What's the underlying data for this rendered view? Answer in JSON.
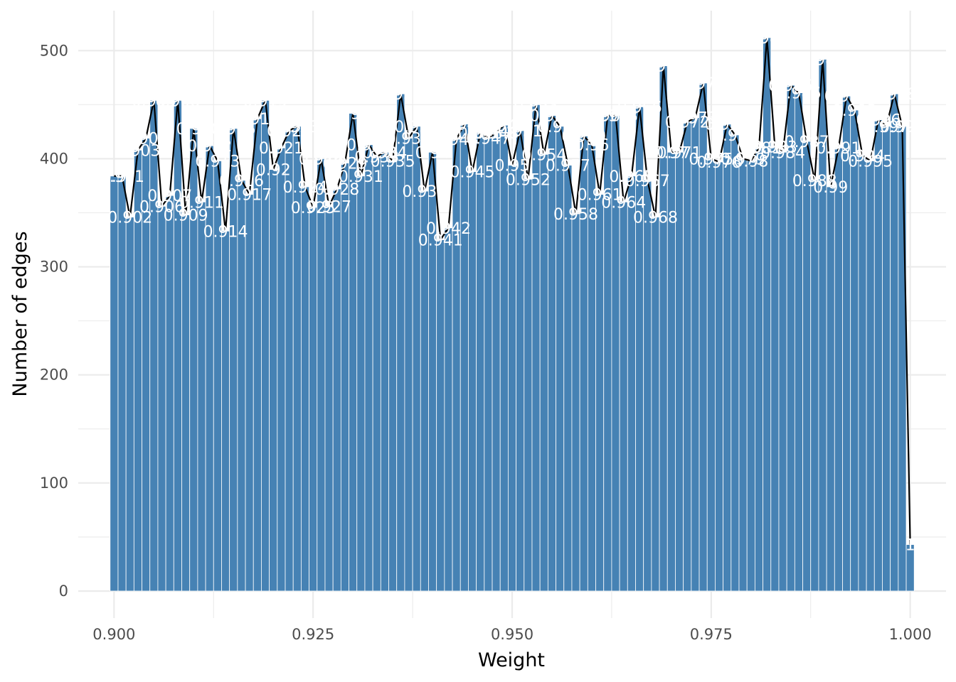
{
  "chart_data": {
    "type": "bar",
    "xlabel": "Weight",
    "ylabel": "Number of edges",
    "xlim": [
      0.8955,
      1.0045
    ],
    "ylim": [
      -25,
      537
    ],
    "x_ticks": [
      "0.900",
      "0.925",
      "0.950",
      "0.975",
      "1.000"
    ],
    "y_ticks": [
      "0",
      "100",
      "200",
      "300",
      "400",
      "500"
    ],
    "grid": true,
    "legend": "none",
    "colors": {
      "bar": "#4682b4",
      "bar_edge": "#ffffff",
      "line": "#000000",
      "grid": "#ebebeb",
      "label": "#ffffff"
    },
    "x": [
      0.9,
      0.901,
      0.902,
      0.903,
      0.904,
      0.905,
      0.906,
      0.907,
      0.908,
      0.909,
      0.91,
      0.911,
      0.912,
      0.913,
      0.914,
      0.915,
      0.916,
      0.917,
      0.918,
      0.919,
      0.92,
      0.921,
      0.922,
      0.923,
      0.924,
      0.925,
      0.926,
      0.927,
      0.928,
      0.929,
      0.93,
      0.931,
      0.932,
      0.933,
      0.934,
      0.935,
      0.936,
      0.937,
      0.938,
      0.939,
      0.94,
      0.941,
      0.942,
      0.943,
      0.944,
      0.945,
      0.946,
      0.947,
      0.948,
      0.949,
      0.95,
      0.951,
      0.952,
      0.953,
      0.954,
      0.955,
      0.956,
      0.957,
      0.958,
      0.959,
      0.96,
      0.961,
      0.962,
      0.963,
      0.964,
      0.965,
      0.966,
      0.967,
      0.968,
      0.969,
      0.97,
      0.971,
      0.972,
      0.973,
      0.974,
      0.975,
      0.976,
      0.977,
      0.978,
      0.979,
      0.98,
      0.981,
      0.982,
      0.983,
      0.984,
      0.985,
      0.986,
      0.987,
      0.988,
      0.989,
      0.99,
      0.991,
      0.992,
      0.993,
      0.994,
      0.995,
      0.996,
      0.997,
      0.998,
      0.999,
      1.0
    ],
    "values": [
      384,
      384,
      346,
      408,
      419,
      454,
      356,
      366,
      454,
      348,
      428,
      360,
      412,
      398,
      333,
      428,
      380,
      367,
      437,
      454,
      390,
      410,
      426,
      430,
      374,
      355,
      400,
      356,
      372,
      396,
      442,
      384,
      413,
      402,
      406,
      398,
      460,
      419,
      430,
      370,
      406,
      325,
      336,
      418,
      432,
      388,
      424,
      419,
      424,
      431,
      394,
      426,
      381,
      450,
      404,
      440,
      430,
      394,
      349,
      421,
      413,
      367,
      440,
      440,
      360,
      384,
      448,
      380,
      346,
      486,
      406,
      406,
      434,
      438,
      470,
      400,
      397,
      432,
      422,
      400,
      398,
      410,
      512,
      411,
      406,
      468,
      461,
      416,
      380,
      492,
      374,
      410,
      458,
      445,
      403,
      398,
      436,
      430,
      460,
      430,
      43
    ],
    "labels": [
      "0.9",
      "0.901",
      "0.902",
      "0.903",
      "0.904",
      "0.905",
      "0.906",
      "0.907",
      "0.908",
      "0.909",
      "0.91",
      "0.911",
      "0.912",
      "0.913",
      "0.914",
      "0.915",
      "0.916",
      "0.917",
      "0.918",
      "0.919",
      "0.92",
      "0.921",
      "0.922",
      "0.923",
      "0.924",
      "0.925",
      "0.926",
      "0.927",
      "0.928",
      "0.929",
      "0.93",
      "0.931",
      "0.932",
      "0.933",
      "0.934",
      "0.935",
      "0.936",
      "0.937",
      "0.938",
      "0.939",
      "0.94",
      "0.941",
      "0.942",
      "0.943",
      "0.944",
      "0.945",
      "0.946",
      "0.947",
      "0.948",
      "0.949",
      "0.95",
      "0.951",
      "0.952",
      "0.953",
      "0.954",
      "0.955",
      "0.956",
      "0.957",
      "0.958",
      "0.959",
      "0.96",
      "0.961",
      "0.962",
      "0.963",
      "0.964",
      "0.965",
      "0.966",
      "0.967",
      "0.968",
      "0.969",
      "0.97",
      "0.971",
      "0.972",
      "0.973",
      "0.974",
      "0.975",
      "0.976",
      "0.977",
      "0.978",
      "0.979",
      "0.98",
      "0.981",
      "0.982",
      "0.983",
      "0.984",
      "0.985",
      "0.986",
      "0.987",
      "0.988",
      "0.989",
      "0.99",
      "0.991",
      "0.992",
      "0.993",
      "0.994",
      "0.995",
      "0.996",
      "0.997",
      "0.998",
      "0.999",
      "1"
    ]
  }
}
